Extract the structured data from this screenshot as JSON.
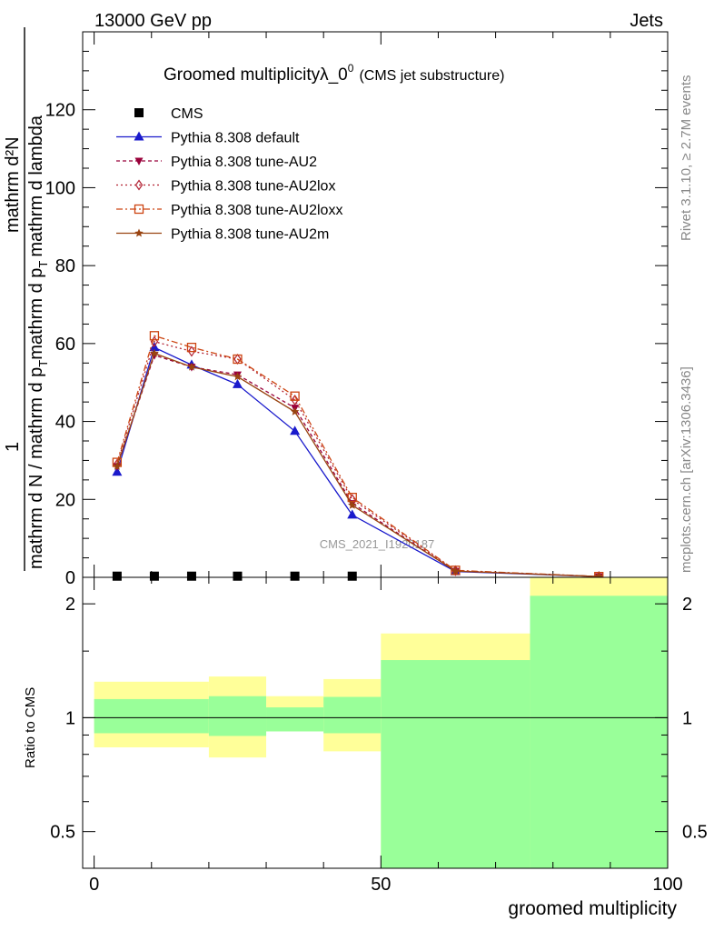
{
  "header": {
    "left": "13000 GeV pp",
    "right": "Jets"
  },
  "side_labels": {
    "rivet": "Rivet 3.1.10, ≥ 2.7M events",
    "mcplots": "mcplots.cern.ch [arXiv:1306.3436]"
  },
  "watermark": "CMS_2021_I1920187",
  "chart_data": [
    {
      "type": "line",
      "panel": "main",
      "title": "Groomed multiplicityλ_0",
      "title_sup": "0",
      "title_suffix": "(CMS jet substructure)",
      "ylabel_numerator": "mathrm d²N",
      "ylabel_numerator_top": "1",
      "ylabel_denominator": "mathrm d N / mathrm d p",
      "ylabel_denominator_tail": "mathrm d p",
      "ylabel_denominator_end": "mathrm d lambda",
      "xlim": [
        -2,
        100
      ],
      "ylim": [
        0,
        140
      ],
      "yticks": [
        0,
        20,
        40,
        60,
        80,
        100,
        120
      ],
      "legend_placement": "top-left",
      "series": [
        {
          "name": "CMS",
          "color": "#000000",
          "marker": "square",
          "x": [
            4,
            10.5,
            17,
            25,
            35,
            45
          ],
          "y": [
            0.3,
            0.3,
            0.3,
            0.3,
            0.3,
            0.3
          ]
        },
        {
          "name": "Pythia 8.308 default",
          "color": "#1a1acc",
          "marker": "triangle-up",
          "dash": "",
          "x": [
            4,
            10.5,
            17,
            25,
            35,
            45,
            63,
            88
          ],
          "y": [
            27,
            59,
            54.5,
            49.5,
            37.5,
            16,
            1.5,
            0.2
          ]
        },
        {
          "name": "Pythia 8.308 tune-AU2",
          "color": "#99003a",
          "marker": "triangle-down",
          "dash": "4,3",
          "x": [
            4,
            10.5,
            17,
            25,
            35,
            45,
            63,
            88
          ],
          "y": [
            28.5,
            57,
            54,
            52,
            43.5,
            19,
            1.6,
            0.2
          ]
        },
        {
          "name": "Pythia 8.308 tune-AU2lox",
          "color": "#b22233",
          "marker": "diamond-open",
          "dash": "2,3",
          "x": [
            4,
            10.5,
            17,
            25,
            35,
            45,
            63,
            88
          ],
          "y": [
            29,
            60.5,
            58,
            56,
            45.5,
            20,
            1.7,
            0.2
          ]
        },
        {
          "name": "Pythia 8.308 tune-AU2loxx",
          "color": "#cc4411",
          "marker": "square-open",
          "dash": "7,3,2,3",
          "x": [
            4,
            10.5,
            17,
            25,
            35,
            45,
            63,
            88
          ],
          "y": [
            29.5,
            62,
            59,
            56,
            46.5,
            20.5,
            1.8,
            0.2
          ]
        },
        {
          "name": "Pythia 8.308 tune-AU2m",
          "color": "#994411",
          "marker": "star",
          "dash": "",
          "x": [
            4,
            10.5,
            17,
            25,
            35,
            45,
            63,
            88
          ],
          "y": [
            28.5,
            57.5,
            54,
            51.5,
            42.5,
            18.5,
            1.6,
            0.2
          ]
        }
      ]
    },
    {
      "type": "area",
      "panel": "ratio",
      "ylabel": "Ratio to CMS",
      "xlabel": "groomed multiplicity",
      "xlim": [
        -2,
        100
      ],
      "ylim": [
        0.4,
        2.35
      ],
      "log_y": true,
      "yticks": [
        0.5,
        1,
        2
      ],
      "xticks": [
        0,
        50,
        100
      ],
      "reference_line": 1,
      "bins": [
        {
          "x_lo": 0,
          "x_hi": 20,
          "lo_1sigma": 0.91,
          "hi_1sigma": 1.12,
          "lo_2sigma": 0.835,
          "hi_2sigma": 1.245
        },
        {
          "x_lo": 20,
          "x_hi": 30,
          "lo_1sigma": 0.895,
          "hi_1sigma": 1.14,
          "lo_2sigma": 0.785,
          "hi_2sigma": 1.285
        },
        {
          "x_lo": 30,
          "x_hi": 40,
          "lo_1sigma": 0.92,
          "hi_1sigma": 1.065,
          "lo_2sigma": 0.92,
          "hi_2sigma": 1.14
        },
        {
          "x_lo": 40,
          "x_hi": 50,
          "lo_1sigma": 0.91,
          "hi_1sigma": 1.135,
          "lo_2sigma": 0.815,
          "hi_2sigma": 1.265
        },
        {
          "x_lo": 50,
          "x_hi": 76,
          "lo_1sigma": 0.4,
          "hi_1sigma": 1.42,
          "lo_2sigma": 0.4,
          "hi_2sigma": 1.67
        },
        {
          "x_lo": 76,
          "x_hi": 100,
          "lo_1sigma": 0.4,
          "hi_1sigma": 2.1,
          "lo_2sigma": 0.4,
          "hi_2sigma": 2.35
        }
      ],
      "band_colors": {
        "one_sigma": "#99ff99",
        "two_sigma": "#ffff99"
      }
    }
  ]
}
